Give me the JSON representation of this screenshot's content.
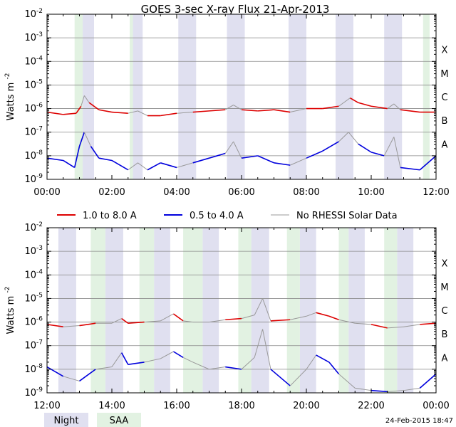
{
  "title": "GOES 3-sec X-ray Flux   21-Apr-2013",
  "ylabel": "Watts m",
  "ylabel_sup": "-2",
  "footer_timestamp": "24-Feb-2015 18:47",
  "legend": [
    {
      "label": "1.0 to 8.0 A",
      "color": "#dd0000"
    },
    {
      "label": "0.5 to 4.0 A",
      "color": "#0000dd"
    },
    {
      "label": "No RHESSI Solar Data",
      "color": "#999999"
    }
  ],
  "shade_legend": [
    {
      "label": "Night",
      "color": "#e0e0f0"
    },
    {
      "label": "SAA",
      "color": "#e2f2e2"
    }
  ],
  "colors": {
    "night": "#e0e0f0",
    "saa": "#e2f2e2",
    "grid": "#888888",
    "long": "#dd0000",
    "short": "#0000dd",
    "gray": "#999999"
  },
  "chart_data": [
    {
      "type": "line",
      "panel": "top",
      "x_unit": "hours UT",
      "xlim": [
        0,
        12
      ],
      "ylim_exponent": [
        -9,
        -2
      ],
      "y_ticks": [
        "10-2",
        "10-3",
        "10-4",
        "10-5",
        "10-6",
        "10-7",
        "10-8",
        "10-9"
      ],
      "x_ticks": [
        "00:00",
        "02:00",
        "04:00",
        "06:00",
        "08:00",
        "10:00",
        "12:00"
      ],
      "flare_classes": [
        "X",
        "M",
        "C",
        "B",
        "A"
      ],
      "night_intervals": [
        [
          1.1,
          1.45
        ],
        [
          2.65,
          2.95
        ],
        [
          4.05,
          4.6
        ],
        [
          5.55,
          6.1
        ],
        [
          7.45,
          8.0
        ],
        [
          8.9,
          9.45
        ],
        [
          10.4,
          10.95
        ]
      ],
      "saa_intervals": [
        [
          0.85,
          1.1
        ],
        [
          2.55,
          2.65
        ],
        [
          11.6,
          11.8
        ]
      ],
      "series": [
        {
          "name": "1.0 to 8.0 A",
          "color": "#dd0000",
          "gray_intervals": [
            [
              1.1,
              1.45
            ],
            [
              2.55,
              2.95
            ],
            [
              4.05,
              4.6
            ],
            [
              5.55,
              6.1
            ],
            [
              7.45,
              8.0
            ],
            [
              8.9,
              9.45
            ],
            [
              10.4,
              10.95
            ]
          ],
          "points": [
            [
              0,
              -6.15
            ],
            [
              0.5,
              -6.25
            ],
            [
              0.9,
              -6.2
            ],
            [
              1.05,
              -5.9
            ],
            [
              1.15,
              -5.45
            ],
            [
              1.3,
              -5.75
            ],
            [
              1.6,
              -6.05
            ],
            [
              2.0,
              -6.15
            ],
            [
              2.5,
              -6.2
            ],
            [
              2.8,
              -6.1
            ],
            [
              3.1,
              -6.3
            ],
            [
              3.5,
              -6.3
            ],
            [
              4.0,
              -6.2
            ],
            [
              4.5,
              -6.15
            ],
            [
              5.0,
              -6.1
            ],
            [
              5.5,
              -6.05
            ],
            [
              5.75,
              -5.85
            ],
            [
              6.0,
              -6.05
            ],
            [
              6.5,
              -6.1
            ],
            [
              7.0,
              -6.05
            ],
            [
              7.5,
              -6.15
            ],
            [
              8.0,
              -6.0
            ],
            [
              8.5,
              -6.0
            ],
            [
              9.0,
              -5.9
            ],
            [
              9.35,
              -5.55
            ],
            [
              9.6,
              -5.75
            ],
            [
              10.0,
              -5.9
            ],
            [
              10.5,
              -6.0
            ],
            [
              10.7,
              -5.8
            ],
            [
              10.9,
              -6.05
            ],
            [
              11.5,
              -6.15
            ],
            [
              12.0,
              -6.15
            ]
          ]
        },
        {
          "name": "0.5 to 4.0 A",
          "color": "#0000dd",
          "gray_intervals": [
            [
              1.1,
              1.45
            ],
            [
              2.55,
              2.95
            ],
            [
              4.05,
              4.6
            ],
            [
              5.55,
              6.1
            ],
            [
              7.45,
              8.0
            ],
            [
              8.9,
              9.45
            ],
            [
              10.4,
              10.95
            ]
          ],
          "points": [
            [
              0,
              -8.1
            ],
            [
              0.5,
              -8.2
            ],
            [
              0.85,
              -8.5
            ],
            [
              1.0,
              -7.6
            ],
            [
              1.15,
              -7.0
            ],
            [
              1.35,
              -7.6
            ],
            [
              1.6,
              -8.1
            ],
            [
              2.0,
              -8.2
            ],
            [
              2.5,
              -8.6
            ],
            [
              2.8,
              -8.3
            ],
            [
              3.1,
              -8.6
            ],
            [
              3.5,
              -8.3
            ],
            [
              4.0,
              -8.5
            ],
            [
              4.5,
              -8.3
            ],
            [
              5.0,
              -8.1
            ],
            [
              5.5,
              -7.9
            ],
            [
              5.75,
              -7.4
            ],
            [
              6.0,
              -8.1
            ],
            [
              6.5,
              -8.0
            ],
            [
              7.0,
              -8.3
            ],
            [
              7.5,
              -8.4
            ],
            [
              8.0,
              -8.1
            ],
            [
              8.5,
              -7.8
            ],
            [
              9.0,
              -7.4
            ],
            [
              9.3,
              -7.0
            ],
            [
              9.6,
              -7.5
            ],
            [
              10.0,
              -7.85
            ],
            [
              10.4,
              -8.0
            ],
            [
              10.7,
              -7.2
            ],
            [
              10.9,
              -8.5
            ],
            [
              11.5,
              -8.6
            ],
            [
              12.0,
              -8.0
            ]
          ]
        }
      ]
    },
    {
      "type": "line",
      "panel": "bottom",
      "x_unit": "hours UT",
      "xlim": [
        12,
        24
      ],
      "ylim_exponent": [
        -9,
        -2
      ],
      "y_ticks": [
        "10-2",
        "10-3",
        "10-4",
        "10-5",
        "10-6",
        "10-7",
        "10-8",
        "10-9"
      ],
      "x_ticks": [
        "12:00",
        "14:00",
        "16:00",
        "18:00",
        "20:00",
        "22:00",
        "00:00"
      ],
      "flare_classes": [
        "X",
        "M",
        "C",
        "B",
        "A"
      ],
      "night_intervals": [
        [
          12.35,
          12.9
        ],
        [
          13.8,
          14.35
        ],
        [
          15.3,
          15.8
        ],
        [
          16.8,
          17.3
        ],
        [
          18.3,
          18.85
        ],
        [
          19.8,
          20.3
        ],
        [
          21.3,
          21.8
        ],
        [
          22.8,
          23.3
        ]
      ],
      "saa_intervals": [
        [
          13.35,
          13.8
        ],
        [
          14.85,
          15.3
        ],
        [
          16.2,
          16.8
        ],
        [
          17.9,
          18.3
        ],
        [
          19.4,
          19.8
        ],
        [
          21.0,
          21.3
        ],
        [
          22.4,
          22.8
        ]
      ],
      "series": [
        {
          "name": "1.0 to 8.0 A",
          "color": "#dd0000",
          "gray_intervals": [
            [
              12.35,
              12.9
            ],
            [
              13.35,
              14.35
            ],
            [
              14.85,
              15.8
            ],
            [
              16.2,
              17.3
            ],
            [
              17.9,
              18.85
            ],
            [
              19.4,
              20.3
            ],
            [
              21.0,
              21.8
            ],
            [
              22.4,
              23.3
            ]
          ],
          "points": [
            [
              12.0,
              -6.1
            ],
            [
              12.5,
              -6.2
            ],
            [
              13.0,
              -6.15
            ],
            [
              13.5,
              -6.05
            ],
            [
              14.0,
              -6.05
            ],
            [
              14.3,
              -5.85
            ],
            [
              14.5,
              -6.05
            ],
            [
              15.0,
              -6.0
            ],
            [
              15.5,
              -5.95
            ],
            [
              15.9,
              -5.65
            ],
            [
              16.2,
              -5.95
            ],
            [
              16.5,
              -6.0
            ],
            [
              17.0,
              -6.0
            ],
            [
              17.5,
              -5.9
            ],
            [
              18.0,
              -5.85
            ],
            [
              18.4,
              -5.7
            ],
            [
              18.65,
              -5.0
            ],
            [
              18.9,
              -5.95
            ],
            [
              19.5,
              -5.9
            ],
            [
              20.0,
              -5.75
            ],
            [
              20.3,
              -5.6
            ],
            [
              20.7,
              -5.75
            ],
            [
              21.0,
              -5.9
            ],
            [
              21.5,
              -6.05
            ],
            [
              22.0,
              -6.1
            ],
            [
              22.5,
              -6.25
            ],
            [
              23.0,
              -6.2
            ],
            [
              23.5,
              -6.1
            ],
            [
              24.0,
              -6.05
            ]
          ]
        },
        {
          "name": "0.5 to 4.0 A",
          "color": "#0000dd",
          "gray_intervals": [
            [
              12.35,
              12.9
            ],
            [
              13.35,
              14.35
            ],
            [
              14.85,
              15.8
            ],
            [
              16.2,
              17.3
            ],
            [
              17.9,
              18.85
            ],
            [
              19.4,
              20.3
            ],
            [
              21.0,
              21.8
            ],
            [
              22.4,
              23.3
            ]
          ],
          "points": [
            [
              12.0,
              -7.9
            ],
            [
              12.5,
              -8.3
            ],
            [
              13.0,
              -8.5
            ],
            [
              13.5,
              -8.0
            ],
            [
              14.0,
              -7.9
            ],
            [
              14.3,
              -7.3
            ],
            [
              14.5,
              -7.8
            ],
            [
              15.0,
              -7.7
            ],
            [
              15.5,
              -7.55
            ],
            [
              15.9,
              -7.25
            ],
            [
              16.2,
              -7.5
            ],
            [
              16.5,
              -7.7
            ],
            [
              17.0,
              -8.0
            ],
            [
              17.5,
              -7.9
            ],
            [
              18.0,
              -8.0
            ],
            [
              18.4,
              -7.5
            ],
            [
              18.65,
              -6.3
            ],
            [
              18.9,
              -8.0
            ],
            [
              19.5,
              -8.7
            ],
            [
              20.0,
              -8.0
            ],
            [
              20.3,
              -7.4
            ],
            [
              20.7,
              -7.7
            ],
            [
              21.0,
              -8.2
            ],
            [
              21.5,
              -8.8
            ],
            [
              22.0,
              -8.9
            ],
            [
              22.5,
              -8.95
            ],
            [
              23.0,
              -8.9
            ],
            [
              23.5,
              -8.8
            ],
            [
              24.0,
              -8.2
            ]
          ]
        }
      ]
    }
  ]
}
